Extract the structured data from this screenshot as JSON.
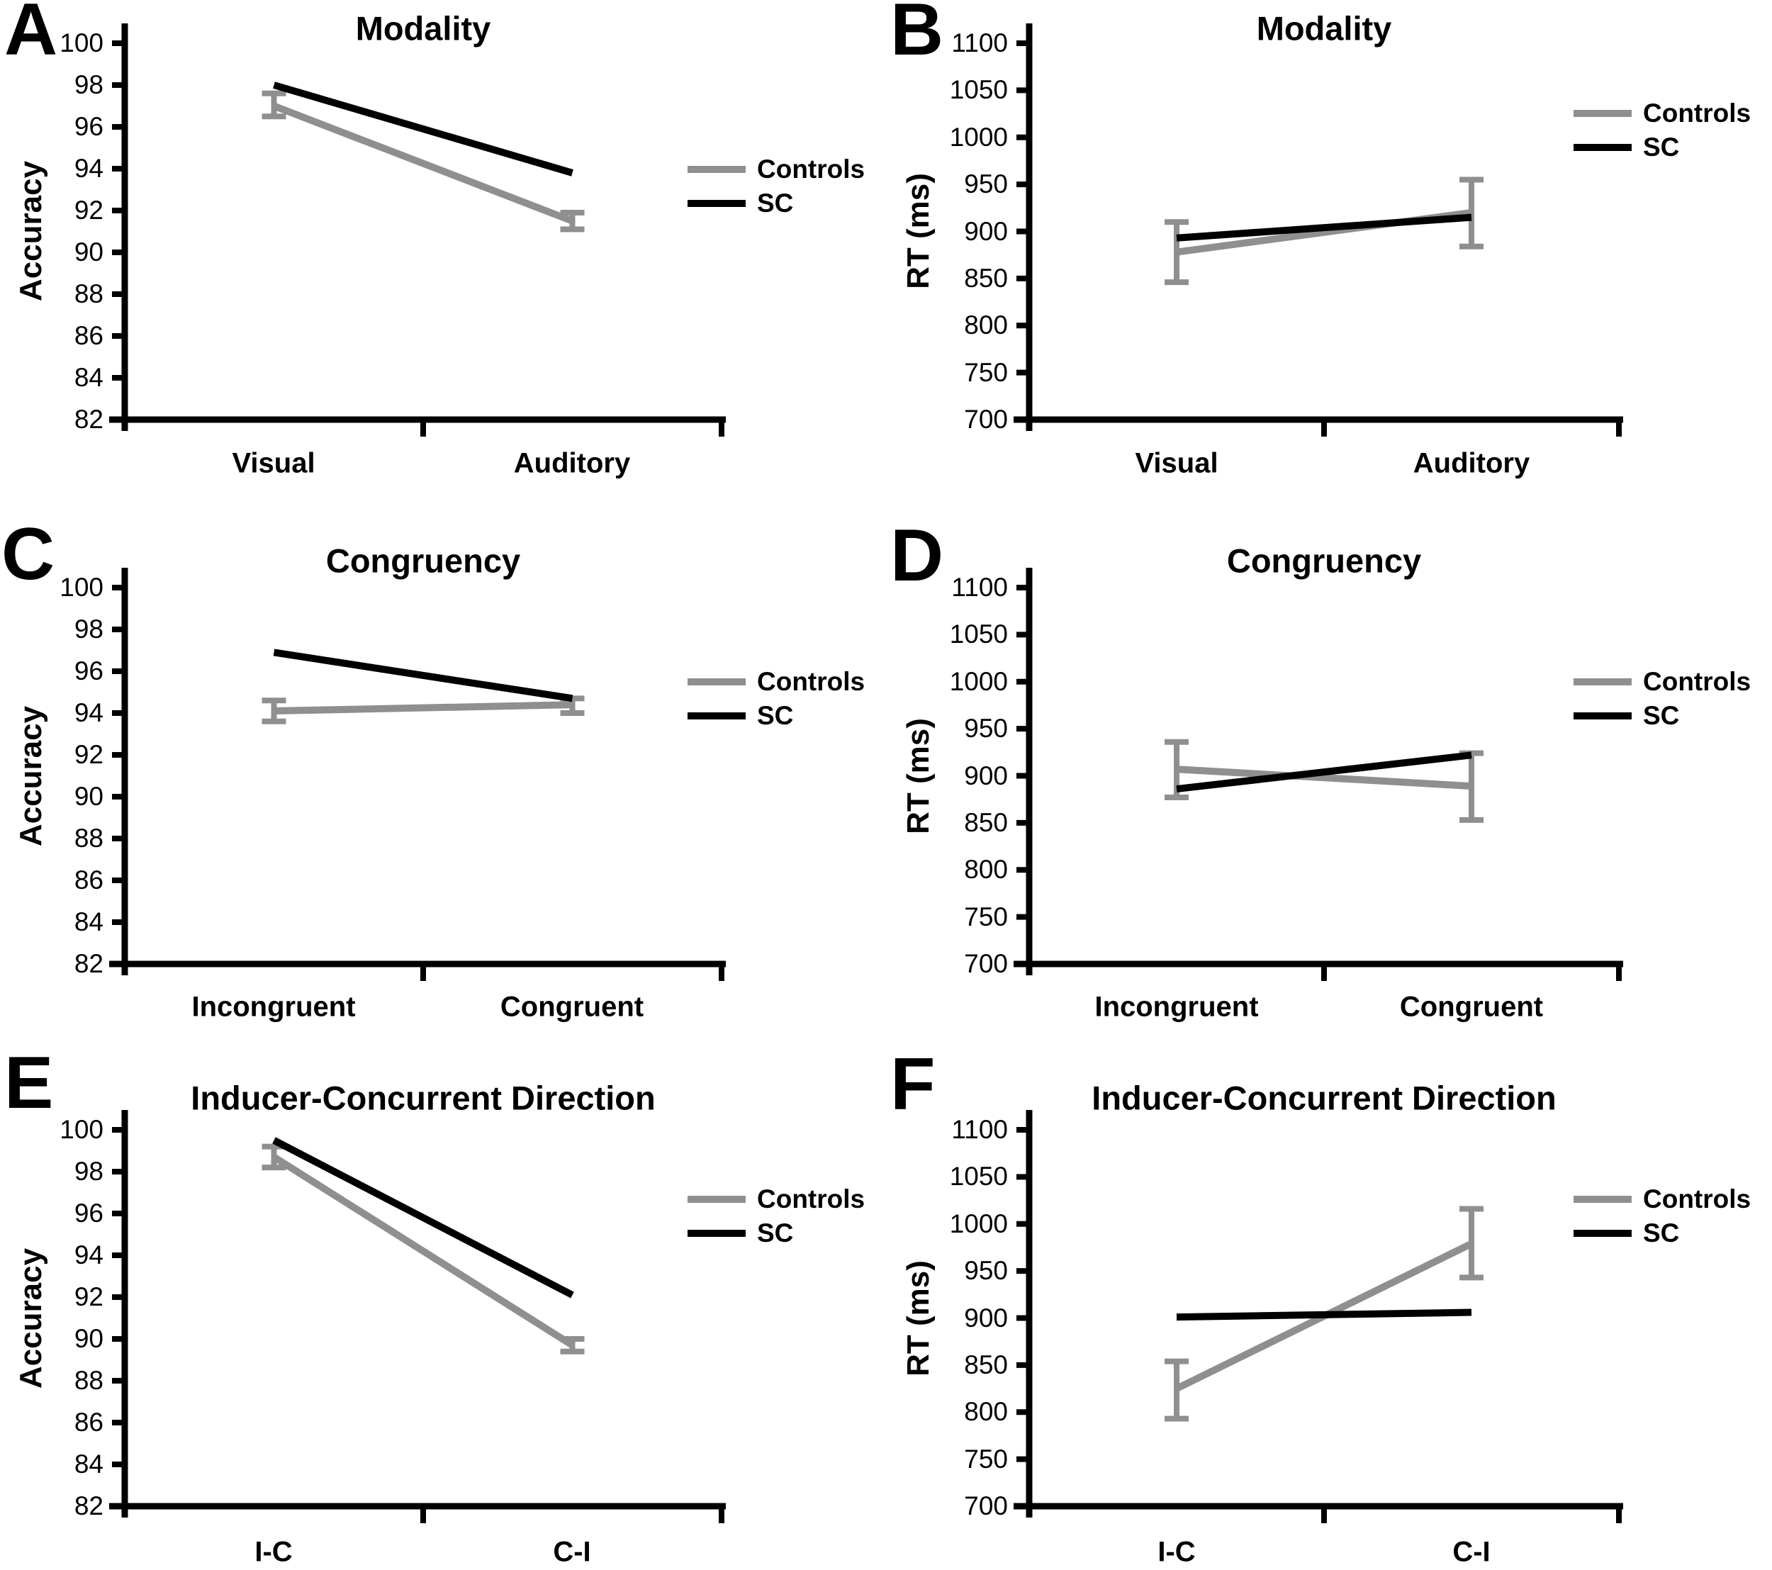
{
  "colors": {
    "controls": "#8f8f8f",
    "sc": "#000000",
    "axis": "#000000",
    "background": "#ffffff"
  },
  "legend": {
    "items": [
      {
        "label": "Controls",
        "color_key": "controls"
      },
      {
        "label": "SC",
        "color_key": "sc"
      }
    ]
  },
  "chart_data": [
    {
      "panel": "A",
      "type": "line",
      "title": "Modality",
      "ylabel": "Accuracy",
      "categories": [
        "Visual",
        "Auditory"
      ],
      "ylim": [
        82,
        100
      ],
      "ytick_step": 2,
      "grid": false,
      "legend_position": "right",
      "series": [
        {
          "name": "Controls",
          "color_key": "controls",
          "values": [
            97.0,
            91.5
          ],
          "error_low": [
            96.5,
            91.1
          ],
          "error_high": [
            97.6,
            91.9
          ]
        },
        {
          "name": "SC",
          "color_key": "sc",
          "values": [
            98.0,
            93.8
          ]
        }
      ]
    },
    {
      "panel": "B",
      "type": "line",
      "title": "Modality",
      "ylabel": "RT (ms)",
      "categories": [
        "Visual",
        "Auditory"
      ],
      "ylim": [
        700,
        1100
      ],
      "ytick_step": 50,
      "grid": false,
      "legend_position": "right",
      "series": [
        {
          "name": "Controls",
          "color_key": "controls",
          "values": [
            878,
            920
          ],
          "error_low": [
            846,
            884
          ],
          "error_high": [
            910,
            955
          ]
        },
        {
          "name": "SC",
          "color_key": "sc",
          "values": [
            893,
            915
          ]
        }
      ]
    },
    {
      "panel": "C",
      "type": "line",
      "title": "Congruency",
      "ylabel": "Accuracy",
      "categories": [
        "Incongruent",
        "Congruent"
      ],
      "ylim": [
        82,
        100
      ],
      "ytick_step": 2,
      "grid": false,
      "legend_position": "right",
      "series": [
        {
          "name": "Controls",
          "color_key": "controls",
          "values": [
            94.1,
            94.4
          ],
          "error_low": [
            93.6,
            94.0
          ],
          "error_high": [
            94.6,
            94.7
          ]
        },
        {
          "name": "SC",
          "color_key": "sc",
          "values": [
            96.9,
            94.7
          ]
        }
      ]
    },
    {
      "panel": "D",
      "type": "line",
      "title": "Congruency",
      "ylabel": "RT (ms)",
      "categories": [
        "Incongruent",
        "Congruent"
      ],
      "ylim": [
        700,
        1100
      ],
      "ytick_step": 50,
      "grid": false,
      "legend_position": "right",
      "series": [
        {
          "name": "Controls",
          "color_key": "controls",
          "values": [
            907,
            889
          ],
          "error_low": [
            877,
            853
          ],
          "error_high": [
            936,
            924
          ]
        },
        {
          "name": "SC",
          "color_key": "sc",
          "values": [
            886,
            922
          ]
        }
      ]
    },
    {
      "panel": "E",
      "type": "line",
      "title": "Inducer-Concurrent Direction",
      "ylabel": "Accuracy",
      "categories": [
        "I-C",
        "C-I"
      ],
      "ylim": [
        82,
        100
      ],
      "ytick_step": 2,
      "grid": false,
      "legend_position": "right",
      "series": [
        {
          "name": "Controls",
          "color_key": "controls",
          "values": [
            98.7,
            89.7
          ],
          "error_low": [
            98.2,
            89.4
          ],
          "error_high": [
            99.2,
            90.0
          ]
        },
        {
          "name": "SC",
          "color_key": "sc",
          "values": [
            99.5,
            92.1
          ]
        }
      ]
    },
    {
      "panel": "F",
      "type": "line",
      "title": "Inducer-Concurrent Direction",
      "ylabel": "RT (ms)",
      "categories": [
        "I-C",
        "C-I"
      ],
      "ylim": [
        700,
        1100
      ],
      "ytick_step": 50,
      "grid": false,
      "legend_position": "right",
      "series": [
        {
          "name": "Controls",
          "color_key": "controls",
          "values": [
            825,
            979
          ],
          "error_low": [
            793,
            943
          ],
          "error_high": [
            854,
            1016
          ]
        },
        {
          "name": "SC",
          "color_key": "sc",
          "values": [
            901,
            906
          ]
        }
      ]
    }
  ]
}
